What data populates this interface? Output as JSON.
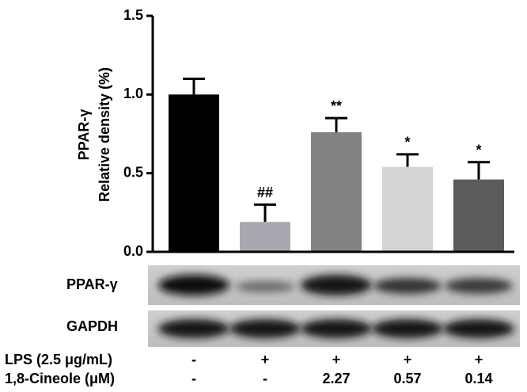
{
  "chart_data": {
    "type": "bar",
    "ylabel_title": "PPAR-γ",
    "ylabel": "Relative density (%)",
    "values": [
      1.0,
      0.19,
      0.76,
      0.54,
      0.46
    ],
    "errors": [
      0.1,
      0.11,
      0.09,
      0.08,
      0.11
    ],
    "colors": [
      "#000000",
      "#a8a8b2",
      "#828282",
      "#d4d4d4",
      "#5c5c5c"
    ],
    "annotations": [
      null,
      "##",
      "**",
      "*",
      "*"
    ],
    "ylim": [
      0,
      1.5
    ],
    "yticks": [
      {
        "value": 0,
        "label": "0.0"
      },
      0.5,
      {
        "value": 1,
        "label": "1.0"
      },
      1.5
    ]
  },
  "blots": [
    "PPAR-γ",
    "GAPDH"
  ],
  "treatments": [
    {
      "label": "LPS (2.5 μg/mL)",
      "values": [
        "-",
        "+",
        "+",
        "+",
        "+"
      ]
    },
    {
      "label": "1,8-Cineole (μM)",
      "values": [
        "-",
        "-",
        "2.27",
        "0.57",
        "0.14"
      ]
    }
  ]
}
